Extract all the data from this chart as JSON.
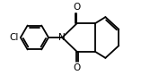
{
  "bg_color": "#ffffff",
  "bond_color": "#000000",
  "lw": 1.3,
  "fs": 7.5,
  "fig_width": 1.57,
  "fig_height": 0.84,
  "dpi": 100,
  "xlim": [
    -4.2,
    2.6
  ],
  "ylim": [
    -1.5,
    1.5
  ]
}
